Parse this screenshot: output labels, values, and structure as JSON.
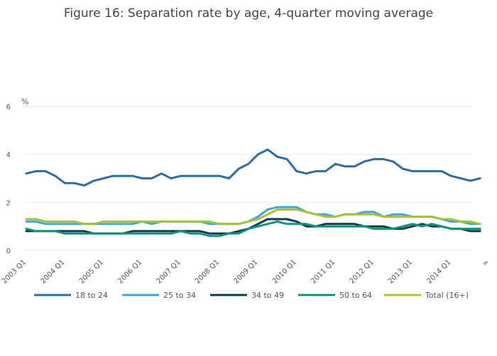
{
  "chart_data": {
    "type": "line",
    "title": "Figure 16: Separation rate by age, 4-quarter moving average",
    "ylabel": "%",
    "xlabel": "",
    "ylim": [
      0,
      6
    ],
    "yticks": [
      "0",
      "2",
      "4",
      "6"
    ],
    "grid": true,
    "legend_position": "bottom",
    "x_tick_labels": [
      "2003 Q1",
      "2004 Q1",
      "2005 Q1",
      "2006 Q1",
      "2007 Q1",
      "2008 Q1",
      "2009 Q1",
      "2010 Q1",
      "2011 Q1",
      "2012 Q1",
      "2013 Q1",
      "2014 Q1",
      "="
    ],
    "x": [
      "2003 Q1",
      "2003 Q2",
      "2003 Q3",
      "2003 Q4",
      "2004 Q1",
      "2004 Q2",
      "2004 Q3",
      "2004 Q4",
      "2005 Q1",
      "2005 Q2",
      "2005 Q3",
      "2005 Q4",
      "2006 Q1",
      "2006 Q2",
      "2006 Q3",
      "2006 Q4",
      "2007 Q1",
      "2007 Q2",
      "2007 Q3",
      "2007 Q4",
      "2008 Q1",
      "2008 Q2",
      "2008 Q3",
      "2008 Q4",
      "2009 Q1",
      "2009 Q2",
      "2009 Q3",
      "2009 Q4",
      "2010 Q1",
      "2010 Q2",
      "2010 Q3",
      "2010 Q4",
      "2011 Q1",
      "2011 Q2",
      "2011 Q3",
      "2011 Q4",
      "2012 Q1",
      "2012 Q2",
      "2012 Q3",
      "2012 Q4",
      "2013 Q1",
      "2013 Q2",
      "2013 Q3",
      "2013 Q4",
      "2014 Q1",
      "2014 Q2",
      "2014 Q3",
      "2014 Q4"
    ],
    "series": [
      {
        "name": "18 to 24",
        "color": "#2e6da4",
        "values": [
          3.2,
          3.3,
          3.3,
          3.1,
          2.8,
          2.8,
          2.7,
          2.9,
          3.0,
          3.1,
          3.1,
          3.1,
          3.0,
          3.0,
          3.2,
          3.0,
          3.1,
          3.1,
          3.1,
          3.1,
          3.1,
          3.0,
          3.4,
          3.6,
          4.0,
          4.2,
          3.9,
          3.8,
          3.3,
          3.2,
          3.3,
          3.3,
          3.6,
          3.5,
          3.5,
          3.7,
          3.8,
          3.8,
          3.7,
          3.4,
          3.3,
          3.3,
          3.3,
          3.3,
          3.1,
          3.0,
          2.9,
          3.0
        ]
      },
      {
        "name": "25 to 34",
        "color": "#3fa6d8",
        "values": [
          1.2,
          1.2,
          1.1,
          1.1,
          1.1,
          1.1,
          1.1,
          1.1,
          1.1,
          1.1,
          1.1,
          1.1,
          1.2,
          1.1,
          1.2,
          1.2,
          1.2,
          1.2,
          1.2,
          1.1,
          1.1,
          1.1,
          1.1,
          1.2,
          1.4,
          1.7,
          1.8,
          1.8,
          1.8,
          1.6,
          1.5,
          1.5,
          1.4,
          1.5,
          1.5,
          1.6,
          1.6,
          1.4,
          1.5,
          1.5,
          1.4,
          1.4,
          1.4,
          1.3,
          1.2,
          1.2,
          1.1,
          1.1
        ]
      },
      {
        "name": "34 to 49",
        "color": "#0f3b50",
        "values": [
          0.8,
          0.8,
          0.8,
          0.8,
          0.8,
          0.8,
          0.8,
          0.7,
          0.7,
          0.7,
          0.7,
          0.8,
          0.8,
          0.8,
          0.8,
          0.8,
          0.8,
          0.8,
          0.8,
          0.7,
          0.7,
          0.7,
          0.8,
          0.9,
          1.1,
          1.3,
          1.3,
          1.3,
          1.2,
          1.0,
          1.0,
          1.1,
          1.1,
          1.1,
          1.1,
          1.0,
          1.0,
          1.0,
          0.9,
          0.9,
          1.0,
          1.1,
          1.0,
          1.0,
          0.9,
          0.9,
          0.8,
          0.8
        ]
      },
      {
        "name": "50 to 64",
        "color": "#14917c",
        "values": [
          0.9,
          0.8,
          0.8,
          0.8,
          0.7,
          0.7,
          0.7,
          0.7,
          0.7,
          0.7,
          0.7,
          0.7,
          0.7,
          0.7,
          0.7,
          0.7,
          0.8,
          0.7,
          0.7,
          0.6,
          0.6,
          0.7,
          0.7,
          0.9,
          1.0,
          1.1,
          1.2,
          1.1,
          1.1,
          1.1,
          1.0,
          1.0,
          1.0,
          1.0,
          1.0,
          1.0,
          0.9,
          0.9,
          0.9,
          1.0,
          1.1,
          1.0,
          1.1,
          1.0,
          0.9,
          0.9,
          0.9,
          0.9
        ]
      },
      {
        "name": "Total (16+)",
        "color": "#a6c13c",
        "values": [
          1.3,
          1.3,
          1.2,
          1.2,
          1.2,
          1.2,
          1.1,
          1.1,
          1.2,
          1.2,
          1.2,
          1.2,
          1.2,
          1.2,
          1.2,
          1.2,
          1.2,
          1.2,
          1.2,
          1.2,
          1.1,
          1.1,
          1.1,
          1.2,
          1.3,
          1.5,
          1.7,
          1.7,
          1.7,
          1.6,
          1.5,
          1.4,
          1.4,
          1.5,
          1.5,
          1.5,
          1.5,
          1.4,
          1.4,
          1.4,
          1.4,
          1.4,
          1.4,
          1.3,
          1.3,
          1.2,
          1.2,
          1.1
        ]
      }
    ]
  }
}
